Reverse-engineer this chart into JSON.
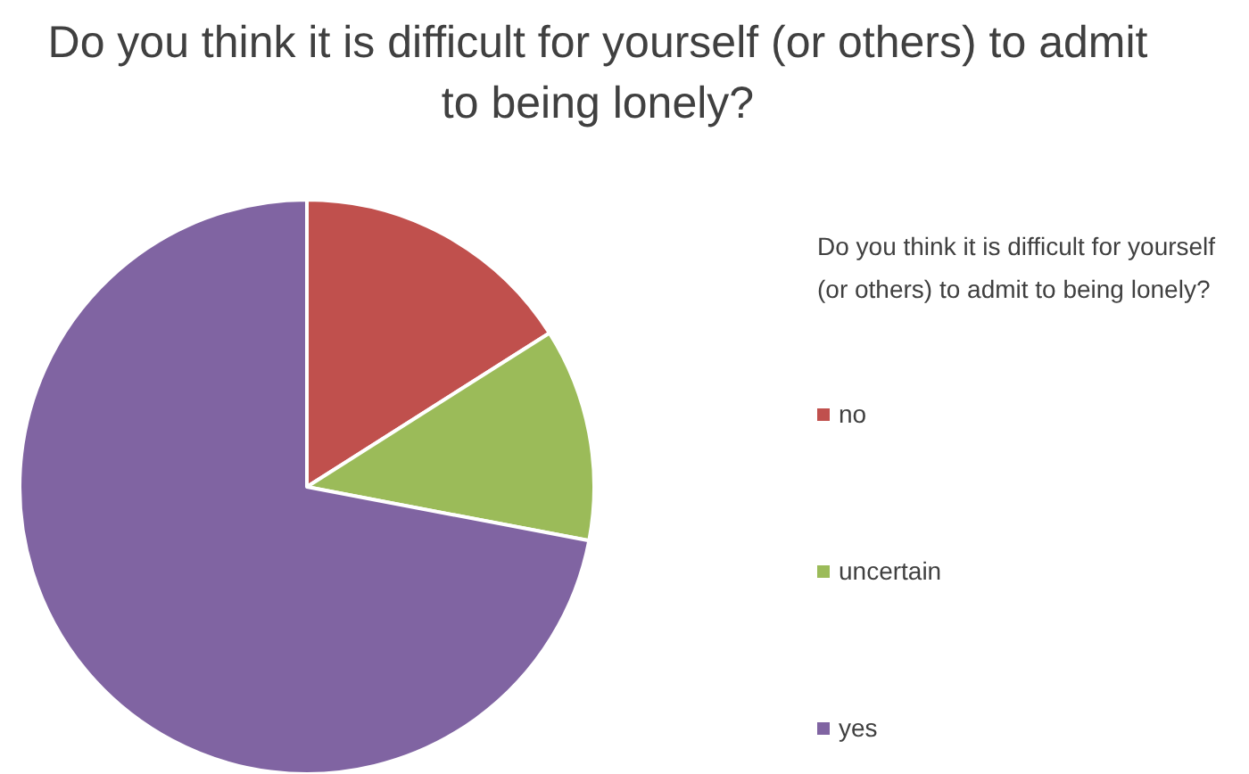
{
  "chart_data": {
    "type": "pie",
    "title": "Do you think it is difficult for yourself (or others) to admit to being lonely?",
    "legend_title": "Do you think it is difficult for yourself (or others) to admit to being lonely?",
    "categories": [
      "no",
      "uncertain",
      "yes"
    ],
    "values": [
      16,
      12,
      72
    ],
    "colors": [
      "#c0504d",
      "#9bbb59",
      "#8064a2"
    ],
    "legend": "right"
  }
}
